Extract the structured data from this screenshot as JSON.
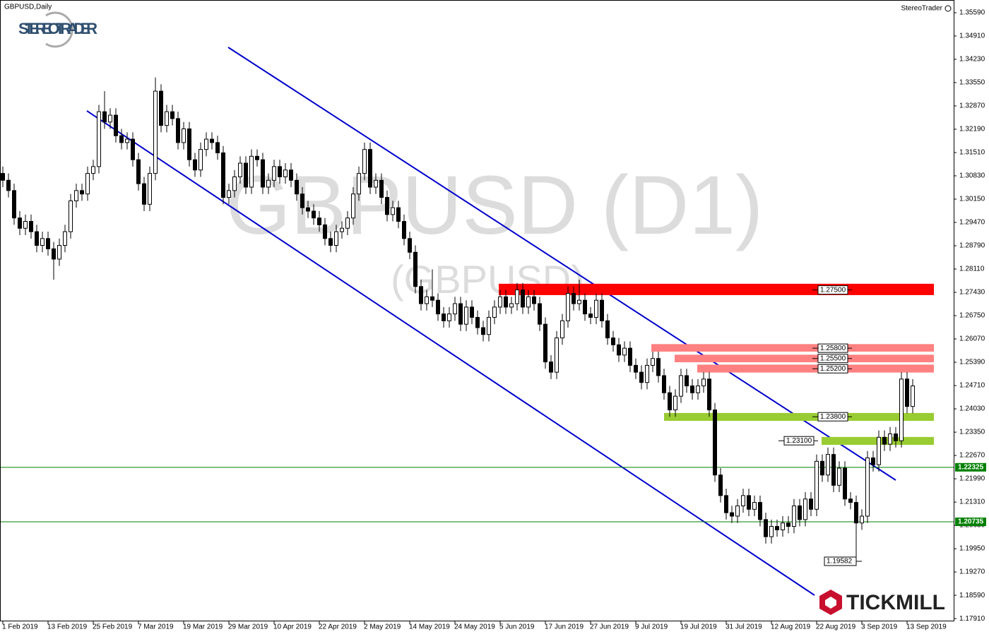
{
  "chart_data": {
    "type": "candlestick",
    "title": "GBPUSD,Daily",
    "brand": "StereoTrader",
    "logo": "STEREOTRADER",
    "logo2": "TICKMILL",
    "watermark": "GBPUSD (D1)",
    "watermark_sub": "(GBPUSD)",
    "categories": [
      "1 Feb 2019",
      null,
      null,
      null,
      null,
      null,
      null,
      null,
      "13 Feb 2019",
      null,
      null,
      null,
      null,
      null,
      null,
      null,
      "25 Feb 2019",
      null,
      null,
      null,
      null,
      null,
      null,
      null,
      "7 Mar 2019",
      null,
      null,
      null,
      null,
      null,
      null,
      null,
      "19 Mar 2019",
      null,
      null,
      null,
      null,
      null,
      null,
      null,
      "29 Mar 2019",
      null,
      null,
      null,
      null,
      null,
      null,
      null,
      "10 Apr 2019",
      null,
      null,
      null,
      null,
      null,
      null,
      null,
      "22 Apr 2019",
      null,
      null,
      null,
      null,
      null,
      null,
      null,
      "2 May 2019",
      null,
      null,
      null,
      null,
      null,
      null,
      null,
      "14 May 2019",
      null,
      null,
      null,
      null,
      null,
      null,
      null,
      "24 May 2019",
      null,
      null,
      null,
      null,
      null,
      null,
      null,
      "5 Jun 2019",
      null,
      null,
      null,
      null,
      null,
      null,
      null,
      "17 Jun 2019",
      null,
      null,
      null,
      null,
      null,
      null,
      null,
      "27 Jun 2019",
      null,
      null,
      null,
      null,
      null,
      null,
      null,
      "9 Jul 2019",
      null,
      null,
      null,
      null,
      null,
      null,
      null,
      "19 Jul 2019",
      null,
      null,
      null,
      null,
      null,
      null,
      null,
      "31 Jul 2019",
      null,
      null,
      null,
      null,
      null,
      null,
      null,
      "12 Aug 2019",
      null,
      null,
      null,
      null,
      null,
      null,
      null,
      "22 Aug 2019",
      null,
      null,
      null,
      null,
      null,
      null,
      null,
      "3 Sep 2019",
      null,
      null,
      null,
      null,
      null,
      null,
      null,
      "13 Sep 2019",
      null
    ],
    "open": [
      1.309,
      1.307,
      1.304,
      1.296,
      1.293,
      1.295,
      1.292,
      1.288,
      1.29,
      1.287,
      1.284,
      1.288,
      1.292,
      1.301,
      1.304,
      1.303,
      1.309,
      1.311,
      1.327,
      1.324,
      1.326,
      1.32,
      1.318,
      1.319,
      1.313,
      1.306,
      1.3,
      1.309,
      1.333,
      1.323,
      1.327,
      1.325,
      1.318,
      1.322,
      1.313,
      1.31,
      1.316,
      1.319,
      1.318,
      1.315,
      1.302,
      1.304,
      1.308,
      1.312,
      1.305,
      1.314,
      1.313,
      1.305,
      1.307,
      1.311,
      1.308,
      1.31,
      1.307,
      1.303,
      1.299,
      1.298,
      1.296,
      1.294,
      1.29,
      1.288,
      1.292,
      1.293,
      1.296,
      1.303,
      1.309,
      1.316,
      1.305,
      1.307,
      1.302,
      1.297,
      1.299,
      1.295,
      1.29,
      1.286,
      1.276,
      1.271,
      1.273,
      1.272,
      1.268,
      1.266,
      1.268,
      1.271,
      1.265,
      1.27,
      1.267,
      1.264,
      1.262,
      1.267,
      1.27,
      1.273,
      1.27,
      1.271,
      1.275,
      1.27,
      1.273,
      1.271,
      1.265,
      1.254,
      1.251,
      1.261,
      1.266,
      1.274,
      1.271,
      1.272,
      1.268,
      1.267,
      1.272,
      1.266,
      1.261,
      1.259,
      1.256,
      1.258,
      1.253,
      1.251,
      1.248,
      1.253,
      1.255,
      1.25,
      1.245,
      1.24,
      1.244,
      1.25,
      1.247,
      1.245,
      1.247,
      1.249,
      1.24,
      1.221,
      1.215,
      1.21,
      1.209,
      1.212,
      1.215,
      1.211,
      1.213,
      1.208,
      1.203,
      1.206,
      1.205,
      1.207,
      1.206,
      1.212,
      1.208,
      1.214,
      1.211,
      1.225,
      1.221,
      1.227,
      1.218,
      1.223,
      1.214,
      1.213,
      1.207,
      1.209,
      1.226,
      1.224,
      1.232,
      1.23,
      1.233,
      1.231,
      1.249,
      1.241
    ],
    "high": [
      1.311,
      1.309,
      1.306,
      1.298,
      1.297,
      1.297,
      1.294,
      1.292,
      1.292,
      1.289,
      1.29,
      1.294,
      1.303,
      1.306,
      1.306,
      1.311,
      1.313,
      1.329,
      1.333,
      1.328,
      1.328,
      1.322,
      1.321,
      1.321,
      1.315,
      1.308,
      1.311,
      1.337,
      1.335,
      1.329,
      1.329,
      1.327,
      1.324,
      1.324,
      1.315,
      1.318,
      1.321,
      1.321,
      1.32,
      1.317,
      1.306,
      1.31,
      1.314,
      1.314,
      1.316,
      1.316,
      1.315,
      1.309,
      1.313,
      1.313,
      1.312,
      1.312,
      1.309,
      1.305,
      1.301,
      1.3,
      1.298,
      1.296,
      1.292,
      1.294,
      1.295,
      1.298,
      1.305,
      1.311,
      1.318,
      1.318,
      1.309,
      1.309,
      1.304,
      1.301,
      1.301,
      1.297,
      1.292,
      1.288,
      1.278,
      1.275,
      1.281,
      1.274,
      1.27,
      1.27,
      1.273,
      1.273,
      1.272,
      1.272,
      1.269,
      1.266,
      1.269,
      1.272,
      1.275,
      1.275,
      1.273,
      1.277,
      1.277,
      1.275,
      1.275,
      1.273,
      1.267,
      1.256,
      1.263,
      1.268,
      1.276,
      1.276,
      1.278,
      1.274,
      1.27,
      1.274,
      1.274,
      1.268,
      1.263,
      1.261,
      1.26,
      1.26,
      1.255,
      1.253,
      1.255,
      1.257,
      1.257,
      1.252,
      1.247,
      1.246,
      1.252,
      1.252,
      1.249,
      1.249,
      1.251,
      1.251,
      1.242,
      1.223,
      1.217,
      1.212,
      1.214,
      1.217,
      1.217,
      1.215,
      1.215,
      1.21,
      1.208,
      1.208,
      1.209,
      1.209,
      1.214,
      1.214,
      1.216,
      1.216,
      1.227,
      1.227,
      1.229,
      1.229,
      1.225,
      1.225,
      1.216,
      1.215,
      1.211,
      1.228,
      1.228,
      1.234,
      1.234,
      1.235,
      1.235,
      1.251,
      1.251,
      1.249
    ],
    "low": [
      1.305,
      1.302,
      1.294,
      1.291,
      1.291,
      1.29,
      1.286,
      1.286,
      1.285,
      1.278,
      1.282,
      1.286,
      1.29,
      1.299,
      1.301,
      1.301,
      1.307,
      1.309,
      1.322,
      1.322,
      1.318,
      1.316,
      1.316,
      1.311,
      1.304,
      1.298,
      1.298,
      1.307,
      1.321,
      1.321,
      1.323,
      1.316,
      1.316,
      1.311,
      1.308,
      1.308,
      1.314,
      1.316,
      1.313,
      1.3,
      1.3,
      1.302,
      1.306,
      1.303,
      1.303,
      1.311,
      1.303,
      1.303,
      1.305,
      1.306,
      1.306,
      1.305,
      1.301,
      1.297,
      1.296,
      1.294,
      1.292,
      1.288,
      1.286,
      1.286,
      1.29,
      1.291,
      1.294,
      1.301,
      1.307,
      1.303,
      1.303,
      1.3,
      1.295,
      1.295,
      1.293,
      1.288,
      1.284,
      1.274,
      1.269,
      1.269,
      1.27,
      1.266,
      1.264,
      1.264,
      1.266,
      1.263,
      1.263,
      1.265,
      1.262,
      1.26,
      1.26,
      1.265,
      1.268,
      1.268,
      1.268,
      1.269,
      1.268,
      1.268,
      1.269,
      1.263,
      1.252,
      1.249,
      1.249,
      1.259,
      1.264,
      1.269,
      1.269,
      1.266,
      1.265,
      1.265,
      1.264,
      1.259,
      1.257,
      1.254,
      1.254,
      1.251,
      1.249,
      1.246,
      1.246,
      1.251,
      1.248,
      1.243,
      1.238,
      1.238,
      1.242,
      1.245,
      1.243,
      1.243,
      1.245,
      1.238,
      1.219,
      1.213,
      1.208,
      1.207,
      1.207,
      1.21,
      1.209,
      1.209,
      1.206,
      1.201,
      1.201,
      1.203,
      1.203,
      1.204,
      1.204,
      1.206,
      1.206,
      1.209,
      1.209,
      1.219,
      1.219,
      1.216,
      1.216,
      1.212,
      1.211,
      1.19582,
      1.205,
      1.207,
      1.222,
      1.222,
      1.228,
      1.228,
      1.229,
      1.229,
      1.239,
      1.239
    ],
    "close": [
      1.307,
      1.304,
      1.296,
      1.293,
      1.295,
      1.292,
      1.288,
      1.29,
      1.287,
      1.284,
      1.288,
      1.292,
      1.301,
      1.304,
      1.303,
      1.309,
      1.311,
      1.327,
      1.324,
      1.326,
      1.32,
      1.318,
      1.319,
      1.313,
      1.306,
      1.3,
      1.309,
      1.333,
      1.323,
      1.327,
      1.325,
      1.318,
      1.322,
      1.313,
      1.31,
      1.316,
      1.319,
      1.318,
      1.315,
      1.302,
      1.304,
      1.308,
      1.312,
      1.305,
      1.314,
      1.313,
      1.305,
      1.307,
      1.311,
      1.308,
      1.31,
      1.307,
      1.303,
      1.299,
      1.298,
      1.296,
      1.294,
      1.29,
      1.288,
      1.292,
      1.293,
      1.296,
      1.303,
      1.309,
      1.316,
      1.305,
      1.307,
      1.302,
      1.297,
      1.299,
      1.295,
      1.29,
      1.286,
      1.276,
      1.271,
      1.273,
      1.272,
      1.268,
      1.266,
      1.268,
      1.271,
      1.265,
      1.27,
      1.267,
      1.264,
      1.262,
      1.267,
      1.27,
      1.273,
      1.27,
      1.271,
      1.275,
      1.27,
      1.273,
      1.271,
      1.265,
      1.254,
      1.251,
      1.261,
      1.266,
      1.274,
      1.271,
      1.272,
      1.268,
      1.267,
      1.272,
      1.266,
      1.261,
      1.259,
      1.256,
      1.258,
      1.253,
      1.251,
      1.248,
      1.253,
      1.255,
      1.25,
      1.245,
      1.24,
      1.244,
      1.25,
      1.247,
      1.245,
      1.247,
      1.249,
      1.24,
      1.221,
      1.215,
      1.21,
      1.209,
      1.212,
      1.215,
      1.211,
      1.213,
      1.208,
      1.203,
      1.206,
      1.205,
      1.207,
      1.206,
      1.212,
      1.208,
      1.214,
      1.211,
      1.225,
      1.221,
      1.227,
      1.218,
      1.223,
      1.214,
      1.213,
      1.207,
      1.209,
      1.226,
      1.224,
      1.232,
      1.23,
      1.233,
      1.231,
      1.249,
      1.241,
      1.247
    ],
    "up_color": "#ffffff",
    "down_color": "#000000",
    "ylim": [
      1.1783,
      1.3596
    ],
    "yticks": [
      {
        "value": 1.3559,
        "label": "1.35590"
      },
      {
        "value": 1.3491,
        "label": "1.34910"
      },
      {
        "value": 1.3423,
        "label": "1.34230"
      },
      {
        "value": 1.3355,
        "label": "1.33550"
      },
      {
        "value": 1.3287,
        "label": "1.32870"
      },
      {
        "value": 1.3219,
        "label": "1.32190"
      },
      {
        "value": 1.3151,
        "label": "1.31510"
      },
      {
        "value": 1.3083,
        "label": "1.30830"
      },
      {
        "value": 1.3015,
        "label": "1.30150"
      },
      {
        "value": 1.2947,
        "label": "1.29470"
      },
      {
        "value": 1.2879,
        "label": "1.28790"
      },
      {
        "value": 1.2811,
        "label": "1.28110"
      },
      {
        "value": 1.2743,
        "label": "1.27430"
      },
      {
        "value": 1.2675,
        "label": "1.26750"
      },
      {
        "value": 1.2607,
        "label": "1.26070"
      },
      {
        "value": 1.2539,
        "label": "1.25390"
      },
      {
        "value": 1.2471,
        "label": "1.24710"
      },
      {
        "value": 1.2403,
        "label": "1.24030"
      },
      {
        "value": 1.2335,
        "label": "1.23350"
      },
      {
        "value": 1.2267,
        "label": "1.22670"
      },
      {
        "value": 1.2199,
        "label": "1.21990"
      },
      {
        "value": 1.2131,
        "label": "1.21310"
      },
      {
        "value": 1.2063,
        "label": "1.20630"
      },
      {
        "value": 1.1995,
        "label": "1.19950"
      },
      {
        "value": 1.1927,
        "label": "1.19270"
      },
      {
        "value": 1.1859,
        "label": "1.18590"
      },
      {
        "value": 1.1791,
        "label": "1.17910"
      }
    ],
    "zones": [
      {
        "value": 1.275,
        "label": "1.27500",
        "band": [
          1.2735,
          1.2768
        ],
        "color": "#ff0000"
      },
      {
        "value": 1.258,
        "label": "1.25800",
        "band": [
          1.257,
          1.2592
        ],
        "color": "#ff8080"
      },
      {
        "value": 1.255,
        "label": "1.25500",
        "band": [
          1.2539,
          1.2561
        ],
        "color": "#ff8080"
      },
      {
        "value": 1.252,
        "label": "1.25200",
        "band": [
          1.2509,
          1.2532
        ],
        "color": "#ff8080"
      },
      {
        "value": 1.238,
        "label": "1.23800",
        "band": [
          1.2368,
          1.2391
        ],
        "color": "#99cc33"
      },
      {
        "value": 1.231,
        "label": "1.23100",
        "band": [
          1.2298,
          1.2321
        ],
        "color": "#99cc33"
      }
    ],
    "levels": [
      {
        "value": 1.22325,
        "label": "1.22325",
        "color": "#008000"
      },
      {
        "value": 1.20735,
        "label": "1.20735",
        "color": "#008000"
      }
    ],
    "low_marker": {
      "value": 1.19582,
      "label": "1.19582"
    }
  }
}
